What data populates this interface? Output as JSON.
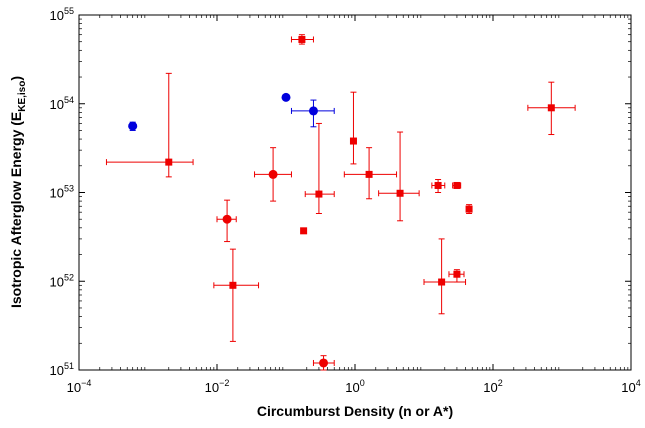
{
  "chart_data": {
    "type": "scatter",
    "title": "",
    "xlabel": "Circumburst Density (n or A*)",
    "ylabel": {
      "main": "Isotropic Afterglow Energy (E",
      "sub": "KE,iso",
      "end": ")"
    },
    "xscale": "log",
    "yscale": "log",
    "xlim": [
      0.0001,
      10000
    ],
    "ylim": [
      1e+51,
      1e+55
    ],
    "grid": false,
    "legend": "none",
    "x_ticks": [
      {
        "value": 0.0001,
        "base": "10",
        "exp": "−4"
      },
      {
        "value": 0.01,
        "base": "10",
        "exp": "−2"
      },
      {
        "value": 1,
        "base": "10",
        "exp": "0"
      },
      {
        "value": 100,
        "base": "10",
        "exp": "2"
      },
      {
        "value": 10000,
        "base": "10",
        "exp": "4"
      }
    ],
    "y_ticks": [
      {
        "value": 1e+51,
        "base": "10",
        "exp": "51"
      },
      {
        "value": 1e+52,
        "base": "10",
        "exp": "52"
      },
      {
        "value": 1e+53,
        "base": "10",
        "exp": "53"
      },
      {
        "value": 1e+54,
        "base": "10",
        "exp": "54"
      },
      {
        "value": 1e+55,
        "base": "10",
        "exp": "55"
      }
    ],
    "colors": {
      "red": "#ee0000",
      "blue": "#0000dd"
    },
    "series": [
      {
        "color": "red",
        "marker": "square",
        "points": [
          {
            "x": 0.17,
            "y": 5.3e+54,
            "xerr": [
              0.12,
              0.25
            ],
            "yerr": [
              4.7e+54,
              6e+54
            ]
          },
          {
            "x": 0.002,
            "y": 2.2e+53,
            "xerr": [
              0.00025,
              0.0045
            ],
            "yerr": [
              1.5e+53,
              2.2e+54
            ]
          },
          {
            "x": 0.017,
            "y": 9e+51,
            "xerr": [
              0.009,
              0.04
            ],
            "yerr": [
              2.1e+51,
              2.3e+52
            ]
          },
          {
            "x": 0.18,
            "y": 3.7e+52
          },
          {
            "x": 0.3,
            "y": 9.6e+52,
            "xerr": [
              0.19,
              0.5
            ],
            "yerr": [
              5.8e+52,
              6e+53
            ]
          },
          {
            "x": 0.95,
            "y": 3.8e+53,
            "yerr": [
              2.1e+53,
              1.35e+54
            ]
          },
          {
            "x": 1.6,
            "y": 1.6e+53,
            "xerr": [
              0.7,
              4.0
            ],
            "yerr": [
              8.5e+52,
              3.2e+53
            ]
          },
          {
            "x": 4.5,
            "y": 9.8e+52,
            "xerr": [
              2.2,
              8.5
            ],
            "yerr": [
              4.8e+52,
              4.8e+53
            ]
          },
          {
            "x": 16,
            "y": 1.2e+53,
            "xerr": [
              13,
              20
            ],
            "yerr": [
              1e+53,
              1.4e+53
            ]
          },
          {
            "x": 30,
            "y": 1.2e+53,
            "xerr": [
              26,
              34
            ]
          },
          {
            "x": 45,
            "y": 6.5e+52,
            "yerr": [
              5.8e+52,
              7.3e+52
            ]
          },
          {
            "x": 18,
            "y": 9.8e+51,
            "xerr": [
              10,
              40
            ],
            "yerr": [
              4.3e+51,
              3e+52
            ]
          },
          {
            "x": 30,
            "y": 1.2e+52,
            "xerr": [
              23,
              38
            ],
            "yerr": [
              9.8e+51,
              1.35e+52
            ]
          },
          {
            "x": 700,
            "y": 9e+53,
            "xerr": [
              320,
              1550
            ],
            "yerr": [
              4.5e+53,
              1.75e+54
            ]
          }
        ]
      },
      {
        "color": "red",
        "marker": "circle",
        "points": [
          {
            "x": 0.014,
            "y": 5e+52,
            "xerr": [
              0.01,
              0.019
            ],
            "yerr": [
              2.8e+52,
              8.2e+52
            ]
          },
          {
            "x": 0.065,
            "y": 1.6e+53,
            "xerr": [
              0.035,
              0.12
            ],
            "yerr": [
              8e+52,
              3.2e+53
            ]
          },
          {
            "x": 0.35,
            "y": 1.2e+51,
            "xerr": [
              0.25,
              0.5
            ],
            "yerr": [
              1e+51,
              1.45e+51
            ]
          }
        ]
      },
      {
        "color": "blue",
        "marker": "circle",
        "points": [
          {
            "x": 0.0006,
            "y": 5.6e+53,
            "yerr": [
              5e+53,
              6.2e+53
            ]
          },
          {
            "x": 0.1,
            "y": 1.18e+54,
            "yerr": [
              1.1e+54,
              1.26e+54
            ]
          },
          {
            "x": 0.25,
            "y": 8.3e+53,
            "xerr": [
              0.12,
              0.5
            ],
            "yerr": [
              5.5e+53,
              1.1e+54
            ]
          }
        ]
      }
    ]
  }
}
